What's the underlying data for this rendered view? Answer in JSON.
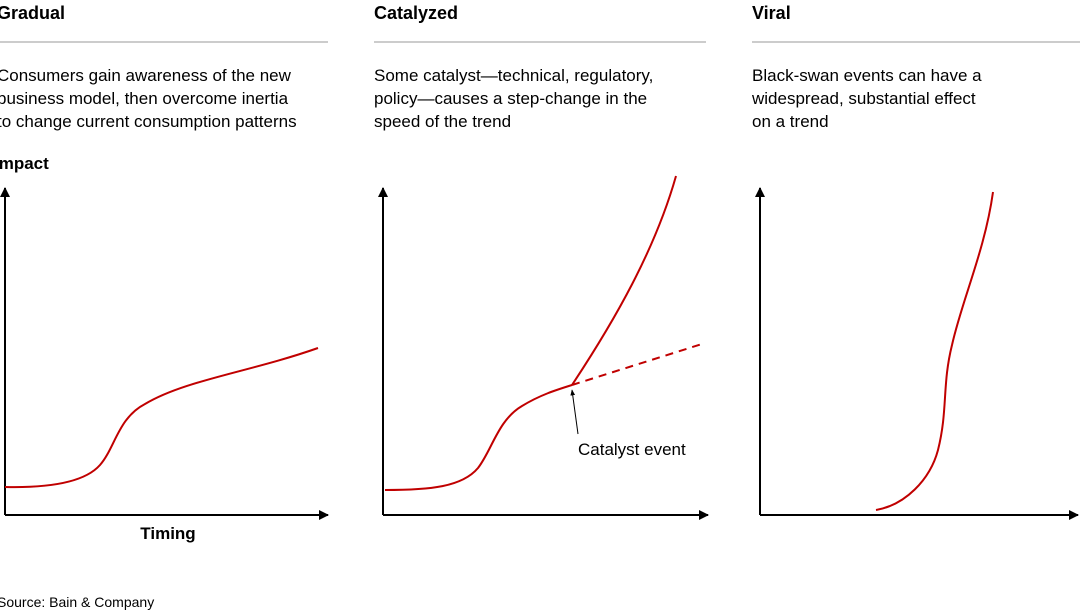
{
  "panels": [
    {
      "title": "Gradual",
      "description": [
        "Consumers gain awareness of the new",
        "business model, then overcome inertia",
        "to change current consumption patterns"
      ],
      "y_axis_label": "Impact",
      "x_axis_label": "Timing"
    },
    {
      "title": "Catalyzed",
      "description": [
        "Some catalyst—technical, regulatory,",
        "policy—causes a step-change in the",
        "speed of the trend"
      ],
      "annotation": "Catalyst event"
    },
    {
      "title": "Viral",
      "description": [
        "Black-swan events can have a",
        "widespread, substantial effect",
        "on a trend"
      ]
    }
  ],
  "source": "Source: Bain & Company"
}
